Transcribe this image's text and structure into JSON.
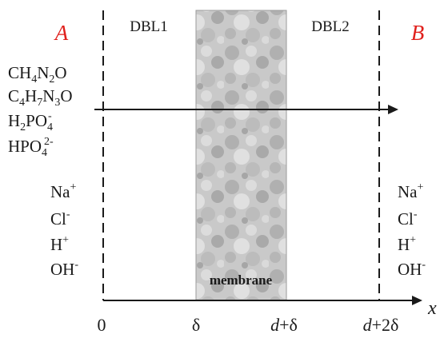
{
  "regions": {
    "left": "A",
    "right": "B"
  },
  "layers": {
    "dbl1": "DBL1",
    "dbl2": "DBL2",
    "membrane": "membrane"
  },
  "species_left": {
    "s1": {
      "p1": "CH",
      "p2": "4",
      "p3": "N",
      "p4": "2",
      "p5": "O"
    },
    "s2": {
      "p1": "C",
      "p2": "4",
      "p3": "H",
      "p4": "7",
      "p5": "N",
      "p6": "3",
      "p7": "O"
    },
    "s3": {
      "p1": "H",
      "p2": "2",
      "p3": "PO",
      "p4": "4",
      "p5": "-"
    },
    "s4": {
      "p1": "HPO",
      "p2": "4",
      "p3": "2-"
    }
  },
  "ions": {
    "na": {
      "base": "Na",
      "charge": "+"
    },
    "cl": {
      "base": "Cl",
      "charge": "-"
    },
    "h": {
      "base": "H",
      "charge": "+"
    },
    "oh": {
      "base": "OH",
      "charge": "-"
    }
  },
  "axis": {
    "label": "x",
    "ticks": {
      "zero": "0",
      "delta": "δ",
      "d1": {
        "d": "d",
        "rest": "+δ"
      },
      "d2": {
        "d": "d",
        "rest": "+2δ"
      }
    }
  },
  "colors": {
    "accent_red": "#e0201c",
    "membrane_fill": "#c9c9c9",
    "line": "#1a1a1a"
  }
}
